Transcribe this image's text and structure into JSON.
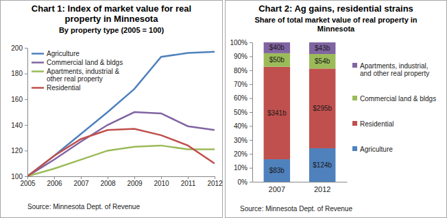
{
  "chart_data": [
    {
      "type": "line",
      "title": "Chart 1: Index of market value for real property in Minnesota",
      "subtitle": "By property type (2005 = 100)",
      "annotations": [
        "Source: Minnesota Dept. of Revenue"
      ],
      "x": [
        2005,
        2006,
        2007,
        2008,
        2009,
        2010,
        2011,
        2012
      ],
      "xlim": [
        2005,
        2012
      ],
      "xticks": [
        2005,
        2006,
        2007,
        2008,
        2009,
        2010,
        2011,
        2012
      ],
      "ylim": [
        100,
        200
      ],
      "yticks": [
        100,
        120,
        140,
        160,
        180,
        200
      ],
      "grid": false,
      "legend": "upper left",
      "series": [
        {
          "name": "Agriculture",
          "color": "#4f81bd",
          "values": [
            100,
            116,
            133,
            150,
            168,
            193,
            196,
            197
          ]
        },
        {
          "name": "Commercial land & bldgs",
          "color": "#8064a2",
          "values": [
            100,
            113,
            127,
            140,
            150,
            149,
            139,
            136
          ]
        },
        {
          "name": "Apartments, industrial & other real property",
          "color": "#9bbb59",
          "values": [
            100,
            106,
            113,
            120,
            123,
            124,
            121,
            121
          ]
        },
        {
          "name": "Residential",
          "color": "#c0504d",
          "values": [
            100,
            116,
            129,
            136,
            137,
            132,
            124,
            110
          ]
        }
      ]
    },
    {
      "type": "bar",
      "stacked": true,
      "title": "Chart 2: Ag gains, residential strains",
      "subtitle": "Share of total market value of real property in Minnesota",
      "annotations": [
        "Source: Minnesota Dept. of Revenue"
      ],
      "categories": [
        "2007",
        "2012"
      ],
      "ylim": [
        0,
        100
      ],
      "yticks": [
        {
          "value": 0,
          "label": "0%"
        },
        {
          "value": 10,
          "label": "10%"
        },
        {
          "value": 20,
          "label": "20%"
        },
        {
          "value": 30,
          "label": "30%"
        },
        {
          "value": 40,
          "label": "40%"
        },
        {
          "value": 50,
          "label": "50%"
        },
        {
          "value": 60,
          "label": "60%"
        },
        {
          "value": 70,
          "label": "70%"
        },
        {
          "value": 80,
          "label": "80%"
        },
        {
          "value": 90,
          "label": "90%"
        },
        {
          "value": 100,
          "label": "100%"
        }
      ],
      "grid": false,
      "legend": "right",
      "series": [
        {
          "name": "Agriculture",
          "color": "#4f81bd",
          "values": [
            16.15,
            24.03
          ],
          "amounts": [
            83,
            124
          ],
          "amount_labels": [
            "$83b",
            "$124b"
          ]
        },
        {
          "name": "Residential",
          "color": "#c0504d",
          "values": [
            66.34,
            57.17
          ],
          "amounts": [
            341,
            295
          ],
          "amount_labels": [
            "$341b",
            "$295b"
          ]
        },
        {
          "name": "Commercial land & bldgs",
          "color": "#9bbb59",
          "values": [
            9.73,
            10.47
          ],
          "amounts": [
            50,
            54
          ],
          "amount_labels": [
            "$50b",
            "$54b"
          ]
        },
        {
          "name": "Apartments, industrial, and other real property",
          "color": "#8064a2",
          "values": [
            7.78,
            8.33
          ],
          "amounts": [
            40,
            43
          ],
          "amount_labels": [
            "$40b",
            "$43b"
          ]
        }
      ]
    }
  ]
}
